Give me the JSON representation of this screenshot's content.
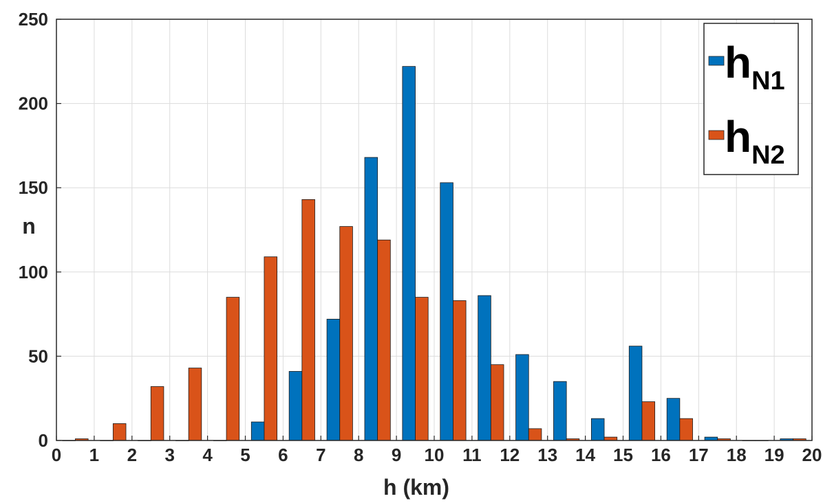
{
  "chart_data": {
    "type": "bar",
    "xlabel": "h (km)",
    "ylabel": "n",
    "xlim": [
      0,
      20
    ],
    "ylim": [
      0,
      250
    ],
    "xticks": [
      "0",
      "1",
      "2",
      "3",
      "4",
      "5",
      "6",
      "7",
      "8",
      "9",
      "10",
      "11",
      "12",
      "13",
      "14",
      "15",
      "16",
      "17",
      "18",
      "19",
      "20"
    ],
    "yticks": [
      "0",
      "50",
      "100",
      "150",
      "200",
      "250"
    ],
    "grid": true,
    "legend_position": "top-right",
    "bin_centers": [
      0.5,
      1.5,
      2.5,
      3.5,
      4.5,
      5.5,
      6.5,
      7.5,
      8.5,
      9.5,
      10.5,
      11.5,
      12.5,
      13.5,
      14.5,
      15.5,
      16.5,
      17.5,
      18.5,
      19.5
    ],
    "series": [
      {
        "name_main": "h",
        "name_sub": "N1",
        "color": "#0072BD",
        "values": [
          0,
          0,
          0,
          0,
          0,
          11,
          41,
          72,
          168,
          222,
          153,
          86,
          51,
          35,
          13,
          56,
          25,
          2,
          0,
          1
        ]
      },
      {
        "name_main": "h",
        "name_sub": "N2",
        "color": "#D95319",
        "values": [
          1,
          10,
          32,
          43,
          85,
          109,
          143,
          127,
          119,
          85,
          83,
          45,
          7,
          1,
          2,
          23,
          13,
          1,
          0,
          1
        ]
      }
    ]
  }
}
